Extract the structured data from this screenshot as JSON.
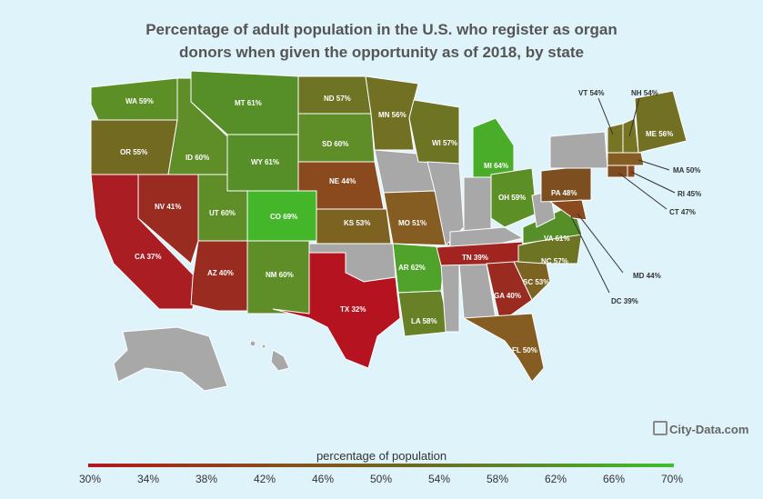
{
  "title_line1": "Percentage of adult population in the U.S. who register as organ",
  "title_line2": "donors when given the opportunity as of 2018, by state",
  "legend": {
    "title": "percentage of population",
    "ticks": [
      "30%",
      "34%",
      "38%",
      "42%",
      "46%",
      "50%",
      "54%",
      "58%",
      "62%",
      "66%",
      "70%"
    ],
    "colors": {
      "low": "#b5131f",
      "high": "#3fbf2a",
      "nodata": "#a8a8a8"
    }
  },
  "brand": "City-Data.com",
  "labels": {
    "WA": "WA 59%",
    "MT": "MT 61%",
    "ND": "ND 57%",
    "MN": "MN 56%",
    "OR": "OR 55%",
    "ID": "ID 60%",
    "WY": "WY 61%",
    "SD": "SD 60%",
    "WI": "WI 57%",
    "MI": "MI 64%",
    "NE": "NE 44%",
    "NV": "NV 41%",
    "UT": "UT 60%",
    "CO": "CO 69%",
    "KS": "KS 53%",
    "MO": "MO 51%",
    "OH": "OH 59%",
    "PA": "PA 48%",
    "CA": "CA 37%",
    "AZ": "AZ 40%",
    "NM": "NM 60%",
    "AR": "AR 62%",
    "TN": "TN 39%",
    "VA": "VA 61%",
    "NC": "NC 57%",
    "SC": "SC 53%",
    "GA": "GA 40%",
    "TX": "TX 32%",
    "LA": "LA 58%",
    "FL": "FL 50%",
    "VT": "VT 54%",
    "NH": "NH 54%",
    "ME": "ME 56%",
    "MA": "MA 50%",
    "RI": "RI 45%",
    "CT": "CT 47%",
    "MD": "MD 44%",
    "DC": "DC 39%"
  }
}
